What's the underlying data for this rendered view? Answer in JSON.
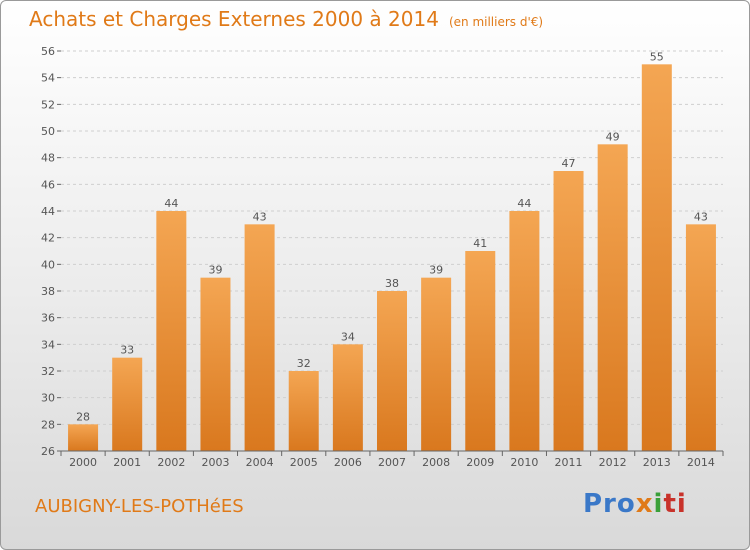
{
  "header": {
    "title": "Achats et Charges Externes 2000 à 2014",
    "unit": "(en milliers d'€)"
  },
  "footer": {
    "city": "AUBIGNY-LES-POTHéES",
    "logo": [
      "Pro",
      "x",
      "i",
      "ti"
    ]
  },
  "colors": {
    "bar_light": "#f4a653",
    "bar_dark": "#d9781e",
    "title": "#e07a18"
  },
  "chart_data": {
    "type": "bar",
    "title": "Achats et Charges Externes 2000 à 2014",
    "subtitle": "(en milliers d'€)",
    "categories": [
      "2000",
      "2001",
      "2002",
      "2003",
      "2004",
      "2005",
      "2006",
      "2007",
      "2008",
      "2009",
      "2010",
      "2011",
      "2012",
      "2013",
      "2014"
    ],
    "values": [
      28,
      33,
      44,
      39,
      43,
      32,
      34,
      38,
      39,
      41,
      44,
      47,
      49,
      55,
      43
    ],
    "ylim": [
      26,
      56
    ],
    "yticks": [
      26,
      28,
      30,
      32,
      34,
      36,
      38,
      40,
      42,
      44,
      46,
      48,
      50,
      52,
      54,
      56
    ],
    "grid": true,
    "data_labels": true
  }
}
